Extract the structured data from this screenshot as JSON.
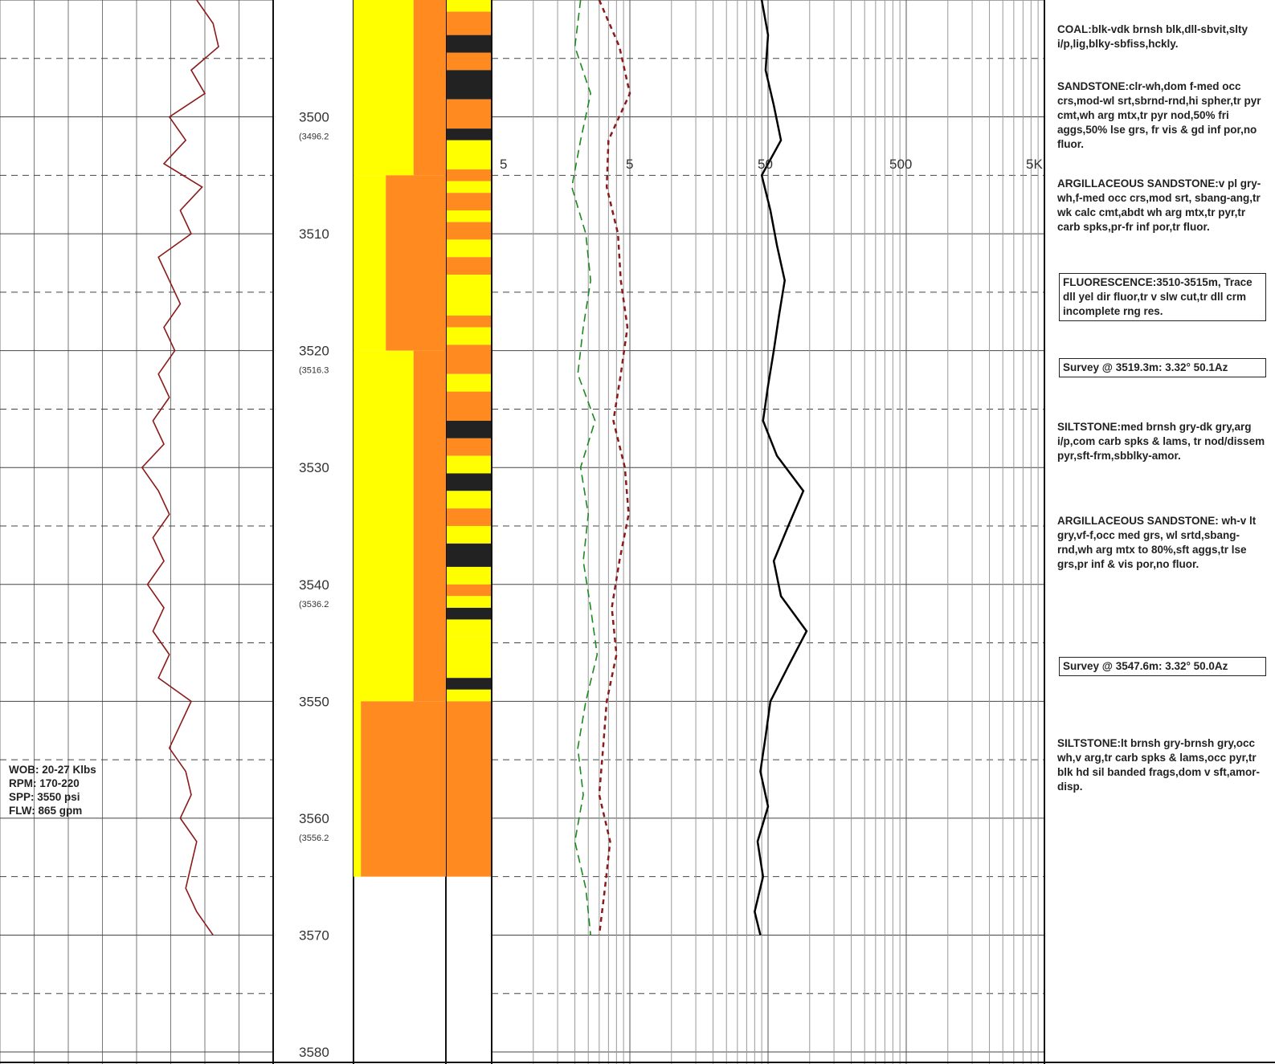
{
  "depth_track": {
    "labels": [
      "3500",
      "3510",
      "3520",
      "3530",
      "3540",
      "3550",
      "3560",
      "3570",
      "3580"
    ],
    "tvd_labels": [
      "(3496.2",
      "(3516.3",
      "(3536.2",
      "(3556.2"
    ]
  },
  "drilling_params": [
    "WOB: 20-27 Klbs",
    "RPM: 170-220",
    "SPP: 3550 psi",
    "FLW: 865 gpm"
  ],
  "gas_scale_labels": [
    "5",
    "5",
    "50",
    "500",
    "5K"
  ],
  "descriptions": [
    {
      "text": "COAL:blk-vdk brnsh blk,dll-sbvit,slty i/p,lig,blky-sbfiss,hckly.",
      "boxed": false
    },
    {
      "text": "SANDSTONE:clr-wh,dom f-med occ crs,mod-wl srt,sbrnd-rnd,hi spher,tr pyr cmt,wh arg mtx,tr pyr nod,50% fri aggs,50% lse grs, fr vis & gd inf por,no fluor.",
      "boxed": false
    },
    {
      "text": "ARGILLACEOUS SANDSTONE:v pl gry-wh,f-med occ crs,mod srt, sbang-ang,tr wk calc cmt,abdt wh arg mtx,tr pyr,tr carb spks,pr-fr inf por,tr fluor.",
      "boxed": false
    },
    {
      "text": "FLUORESCENCE:3510-3515m, Trace dll yel dir fluor,tr v slw cut,tr dll crm incomplete rng res.",
      "boxed": true
    },
    {
      "text": "Survey @ 3519.3m: 3.32° 50.1Az",
      "boxed": true
    },
    {
      "text": "SILTSTONE:med brnsh gry-dk gry,arg i/p,com carb spks & lams, tr nod/dissem pyr,sft-frm,sbblky-amor.",
      "boxed": false
    },
    {
      "text": "ARGILLACEOUS SANDSTONE: wh-v lt gry,vf-f,occ med grs, wl srtd,sbang-rnd,wh arg mtx to 80%,sft aggs,tr lse grs,pr inf & vis por,no fluor.",
      "boxed": false
    },
    {
      "text": "Survey @ 3547.6m: 3.32° 50.0Az",
      "boxed": true
    },
    {
      "text": "SILTSTONE:lt brnsh gry-brnsh gry,occ wh,v arg,tr carb spks & lams,occ pyr,tr blk hd sil banded frags,dom v sft,amor-disp.",
      "boxed": false
    }
  ],
  "colors": {
    "sandstone": "#ffff00",
    "siltstone": "#ff8a1f",
    "coal": "#222222",
    "rop_curve": "#8b1a1a",
    "gas_green": "#1a8a1a",
    "gas_darkred": "#8b1a1a",
    "total_gas": "#000000"
  },
  "chart_data": {
    "type": "line",
    "depth_range": [
      3490,
      3580
    ],
    "depth_unit": "m",
    "lithology_intervals": [
      {
        "top": 3490.0,
        "base": 3491.0,
        "lith": "sandstone"
      },
      {
        "top": 3491.0,
        "base": 3493.0,
        "lith": "siltstone"
      },
      {
        "top": 3493.0,
        "base": 3494.5,
        "lith": "coal"
      },
      {
        "top": 3494.5,
        "base": 3496.0,
        "lith": "siltstone"
      },
      {
        "top": 3496.0,
        "base": 3498.5,
        "lith": "coal"
      },
      {
        "top": 3498.5,
        "base": 3501.0,
        "lith": "siltstone"
      },
      {
        "top": 3501.0,
        "base": 3502.0,
        "lith": "coal"
      },
      {
        "top": 3502.0,
        "base": 3504.5,
        "lith": "sandstone"
      },
      {
        "top": 3504.5,
        "base": 3505.5,
        "lith": "siltstone"
      },
      {
        "top": 3505.5,
        "base": 3506.5,
        "lith": "sandstone"
      },
      {
        "top": 3506.5,
        "base": 3508.0,
        "lith": "siltstone"
      },
      {
        "top": 3508.0,
        "base": 3509.0,
        "lith": "sandstone"
      },
      {
        "top": 3509.0,
        "base": 3510.5,
        "lith": "siltstone"
      },
      {
        "top": 3510.5,
        "base": 3512.0,
        "lith": "sandstone"
      },
      {
        "top": 3512.0,
        "base": 3513.5,
        "lith": "siltstone"
      },
      {
        "top": 3513.5,
        "base": 3517.0,
        "lith": "sandstone"
      },
      {
        "top": 3517.0,
        "base": 3518.0,
        "lith": "siltstone"
      },
      {
        "top": 3518.0,
        "base": 3519.5,
        "lith": "sandstone"
      },
      {
        "top": 3519.5,
        "base": 3522.0,
        "lith": "siltstone"
      },
      {
        "top": 3522.0,
        "base": 3523.5,
        "lith": "sandstone"
      },
      {
        "top": 3523.5,
        "base": 3526.0,
        "lith": "siltstone"
      },
      {
        "top": 3526.0,
        "base": 3527.5,
        "lith": "coal"
      },
      {
        "top": 3527.5,
        "base": 3529.0,
        "lith": "siltstone"
      },
      {
        "top": 3529.0,
        "base": 3530.5,
        "lith": "sandstone"
      },
      {
        "top": 3530.5,
        "base": 3532.0,
        "lith": "coal"
      },
      {
        "top": 3532.0,
        "base": 3533.5,
        "lith": "sandstone"
      },
      {
        "top": 3533.5,
        "base": 3535.0,
        "lith": "siltstone"
      },
      {
        "top": 3535.0,
        "base": 3536.5,
        "lith": "sandstone"
      },
      {
        "top": 3536.5,
        "base": 3538.5,
        "lith": "coal"
      },
      {
        "top": 3538.5,
        "base": 3540.0,
        "lith": "sandstone"
      },
      {
        "top": 3540.0,
        "base": 3541.0,
        "lith": "siltstone"
      },
      {
        "top": 3541.0,
        "base": 3542.0,
        "lith": "sandstone"
      },
      {
        "top": 3542.0,
        "base": 3543.0,
        "lith": "coal"
      },
      {
        "top": 3543.0,
        "base": 3544.5,
        "lith": "sandstone"
      },
      {
        "top": 3544.5,
        "base": 3548.0,
        "lith": "sandstone"
      },
      {
        "top": 3548.0,
        "base": 3549.0,
        "lith": "coal"
      },
      {
        "top": 3549.0,
        "base": 3550.0,
        "lith": "sandstone"
      },
      {
        "top": 3550.0,
        "base": 3565.0,
        "lith": "siltstone"
      }
    ],
    "interpreted_lithology": [
      {
        "top": 3490.0,
        "base": 3505.0,
        "lith": "sandstone_with_siltstone"
      },
      {
        "top": 3505.0,
        "base": 3520.0,
        "lith": "siltstone_dominant"
      },
      {
        "top": 3520.0,
        "base": 3550.0,
        "lith": "sandstone_with_siltstone"
      },
      {
        "top": 3550.0,
        "base": 3565.0,
        "lith": "siltstone"
      }
    ],
    "rop_series": {
      "depths": [
        3490,
        3492,
        3494,
        3496,
        3498,
        3500,
        3502,
        3504,
        3506,
        3508,
        3510,
        3512,
        3514,
        3516,
        3518,
        3520,
        3522,
        3524,
        3526,
        3528,
        3530,
        3532,
        3534,
        3536,
        3538,
        3540,
        3542,
        3544,
        3546,
        3548,
        3550,
        3552,
        3554,
        3556,
        3558,
        3560,
        3562,
        3564,
        3566,
        3568,
        3570
      ],
      "values": [
        0.72,
        0.78,
        0.8,
        0.7,
        0.75,
        0.62,
        0.68,
        0.6,
        0.74,
        0.66,
        0.7,
        0.58,
        0.62,
        0.66,
        0.6,
        0.64,
        0.58,
        0.62,
        0.56,
        0.6,
        0.52,
        0.58,
        0.62,
        0.56,
        0.6,
        0.54,
        0.6,
        0.56,
        0.62,
        0.58,
        0.7,
        0.66,
        0.62,
        0.68,
        0.7,
        0.66,
        0.72,
        0.7,
        0.68,
        0.72,
        0.78
      ]
    },
    "gas_green_series": {
      "depths": [
        3490,
        3494,
        3498,
        3502,
        3506,
        3510,
        3514,
        3518,
        3522,
        3526,
        3530,
        3534,
        3538,
        3542,
        3546,
        3550,
        3554,
        3558,
        3562,
        3566,
        3570
      ],
      "values": [
        2.2,
        2.0,
        2.6,
        2.2,
        1.9,
        2.4,
        2.6,
        2.3,
        2.1,
        2.8,
        2.2,
        2.5,
        2.3,
        2.6,
        2.9,
        2.4,
        2.1,
        2.3,
        2.0,
        2.4,
        2.6
      ]
    },
    "gas_darkred_series": {
      "depths": [
        3490,
        3494,
        3498,
        3502,
        3506,
        3510,
        3514,
        3518,
        3522,
        3526,
        3530,
        3534,
        3538,
        3542,
        3546,
        3550,
        3554,
        3558,
        3562,
        3566,
        3570
      ],
      "values": [
        3.0,
        4.2,
        5.0,
        3.5,
        3.4,
        4.1,
        4.3,
        4.8,
        4.3,
        3.8,
        4.6,
        4.9,
        4.2,
        3.7,
        4.0,
        3.4,
        3.2,
        3.0,
        3.6,
        3.3,
        3.0
      ]
    },
    "total_gas_series": {
      "depths": [
        3490,
        3493,
        3496,
        3499,
        3502,
        3505,
        3508,
        3511,
        3514,
        3517,
        3520,
        3523,
        3526,
        3529,
        3532,
        3535,
        3538,
        3541,
        3544,
        3547,
        3550,
        3553,
        3556,
        3559,
        3562,
        3565,
        3568,
        3570
      ],
      "values": [
        45,
        50,
        48,
        55,
        62,
        45,
        52,
        58,
        66,
        60,
        55,
        50,
        46,
        58,
        90,
        70,
        55,
        62,
        95,
        70,
        52,
        48,
        44,
        50,
        42,
        46,
        40,
        44
      ]
    }
  }
}
